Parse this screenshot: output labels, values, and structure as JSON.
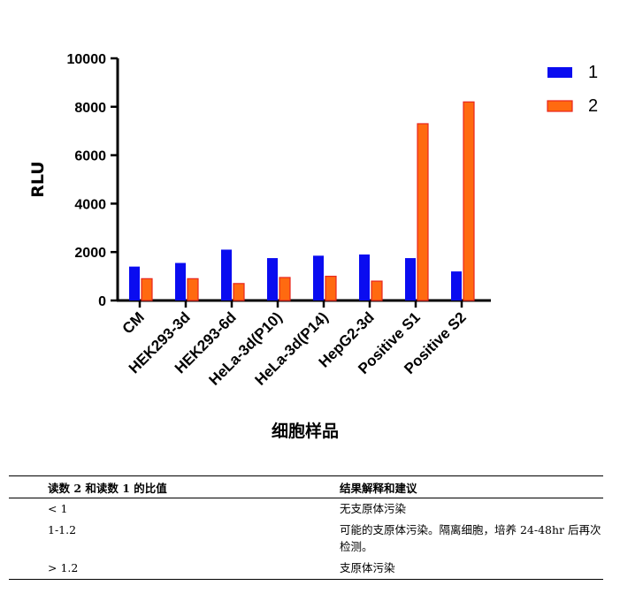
{
  "chart_data": {
    "type": "bar",
    "categories": [
      "CM",
      "HEK293-3d",
      "HEK293-6d",
      "HeLa-3d(P10)",
      "HeLa-3d(P14)",
      "HepG2-3d",
      "Positive S1",
      "Positive S2"
    ],
    "series": [
      {
        "name": "1",
        "color": "#0a0cf0",
        "values": [
          1400,
          1550,
          2100,
          1750,
          1850,
          1900,
          1750,
          1200
        ]
      },
      {
        "name": "2",
        "color": "#ff6a10",
        "edge": "#e8261f",
        "values": [
          900,
          900,
          700,
          950,
          1000,
          800,
          7300,
          8200
        ]
      }
    ],
    "xlabel": "细胞样品",
    "ylabel": "RLU",
    "ylim": [
      0,
      10000
    ],
    "yticks": [
      "0",
      "2000",
      "4000",
      "6000",
      "8000",
      "10000"
    ],
    "grid": false,
    "legend": "top-right"
  },
  "table": {
    "headers": [
      "读数 2 和读数 1 的比值",
      "结果解释和建议"
    ],
    "rows": [
      {
        "ratio": "< 1",
        "interpretation": "无支原体污染"
      },
      {
        "ratio": "1-1.2",
        "interpretation": "可能的支原体污染。隔离细胞，培养 24-48hr 后再次检测。"
      },
      {
        "ratio": "> 1.2",
        "interpretation": "支原体污染"
      }
    ]
  }
}
